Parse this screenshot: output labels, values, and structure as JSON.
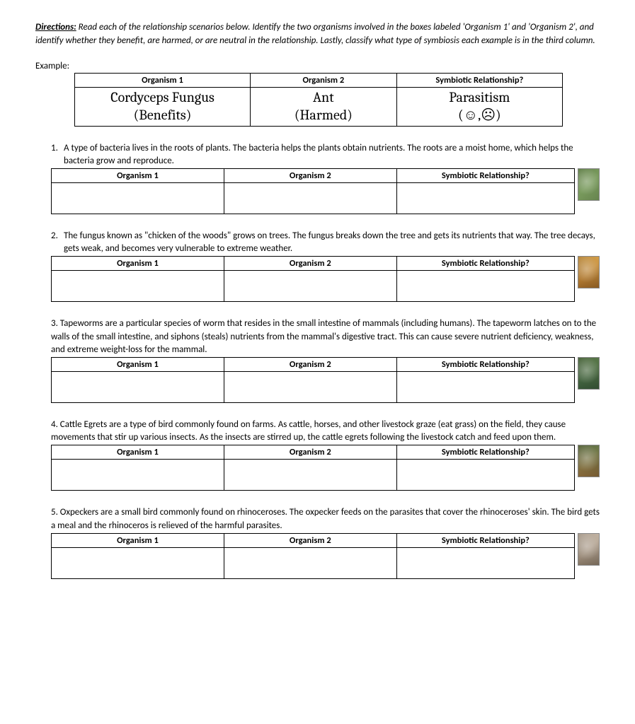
{
  "directions": {
    "label": "Directions:",
    "text": " Read each of the relationship scenarios below. Identify the two organisms involved in the boxes labeled 'Organism 1' and 'Organism 2', and identify whether they benefit, are harmed, or are neutral in the relationship. Lastly, classify what type of symbiosis each example is in the third column."
  },
  "example_label": "Example:",
  "headers": {
    "org1": "Organism 1",
    "org2": "Organism 2",
    "rel": "Symbiotic Relationship?"
  },
  "example": {
    "org1_line1": "Cordyceps Fungus",
    "org1_line2": "(Benefits)",
    "org2_line1": "Ant",
    "org2_line2": "(Harmed)",
    "rel_line1": "Parasitism",
    "rel_line2": "(☺,☹)"
  },
  "questions": [
    {
      "num": "1.",
      "text": "A type of bacteria lives in the roots of plants. The bacteria helps the plants obtain nutrients. The roots are a moist home, which helps the bacteria grow and reproduce.",
      "thumb_class": "plant"
    },
    {
      "num": "2.",
      "text": "The fungus known as \"chicken of the woods\" grows on trees. The fungus breaks down the tree and gets its nutrients that way. The tree decays, gets weak, and becomes very vulnerable to extreme weather.",
      "thumb_class": "fungus"
    },
    {
      "num": "3.",
      "text": "Tapeworms are a particular species of worm that resides in the small intestine of mammals (including humans). The tapeworm latches on to the walls of the small intestine, and siphons (steals) nutrients from the mammal's digestive tract. This can cause severe nutrient deficiency, weakness, and extreme weight-loss for the mammal.",
      "thumb_class": "worm",
      "noindent": true
    },
    {
      "num": "4.",
      "text": "Cattle Egrets are a type of bird commonly found on farms. As cattle, horses, and other livestock graze (eat grass) on the field, they cause movements that stir up various insects. As the insects are stirred up, the cattle egrets following the livestock catch and feed upon them.",
      "thumb_class": "egret",
      "noindent": true
    },
    {
      "num": "5.",
      "text": "Oxpeckers are a small bird commonly found on rhinoceroses. The oxpecker feeds on the parasites that cover the rhinoceroses' skin. The bird gets a meal and the rhinoceros is relieved of the harmful parasites.",
      "thumb_class": "rhino",
      "noindent": true
    }
  ]
}
